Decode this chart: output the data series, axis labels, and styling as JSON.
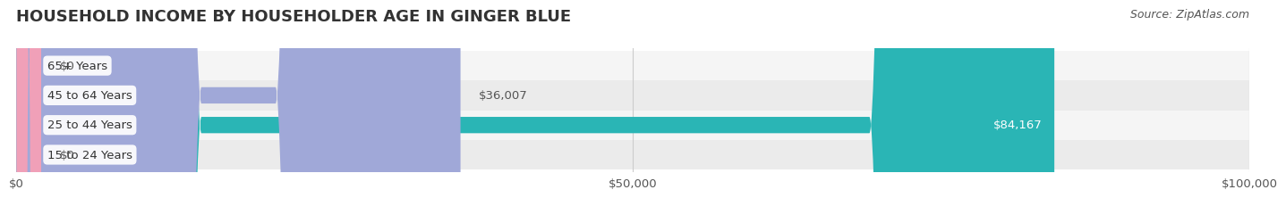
{
  "title": "HOUSEHOLD INCOME BY HOUSEHOLDER AGE IN GINGER BLUE",
  "source": "Source: ZipAtlas.com",
  "categories": [
    "15 to 24 Years",
    "25 to 44 Years",
    "45 to 64 Years",
    "65+ Years"
  ],
  "values": [
    0,
    84167,
    36007,
    0
  ],
  "bar_colors": [
    "#d8a8c8",
    "#2ab5b5",
    "#a0a8d8",
    "#f0a0b8"
  ],
  "label_colors": [
    "#888888",
    "#ffffff",
    "#888888",
    "#888888"
  ],
  "value_labels": [
    "$0",
    "$84,167",
    "$36,007",
    "$0"
  ],
  "row_bg_colors": [
    "#f0f0f0",
    "#f0f0f0",
    "#f0f0f0",
    "#f0f0f0"
  ],
  "xlim": [
    0,
    100000
  ],
  "xticks": [
    0,
    50000,
    100000
  ],
  "xtick_labels": [
    "$0",
    "$50,000",
    "$100,000"
  ],
  "background_color": "#ffffff",
  "title_fontsize": 13,
  "bar_height": 0.55,
  "label_fontsize": 9.5,
  "ylabel_fontsize": 10,
  "source_fontsize": 9
}
